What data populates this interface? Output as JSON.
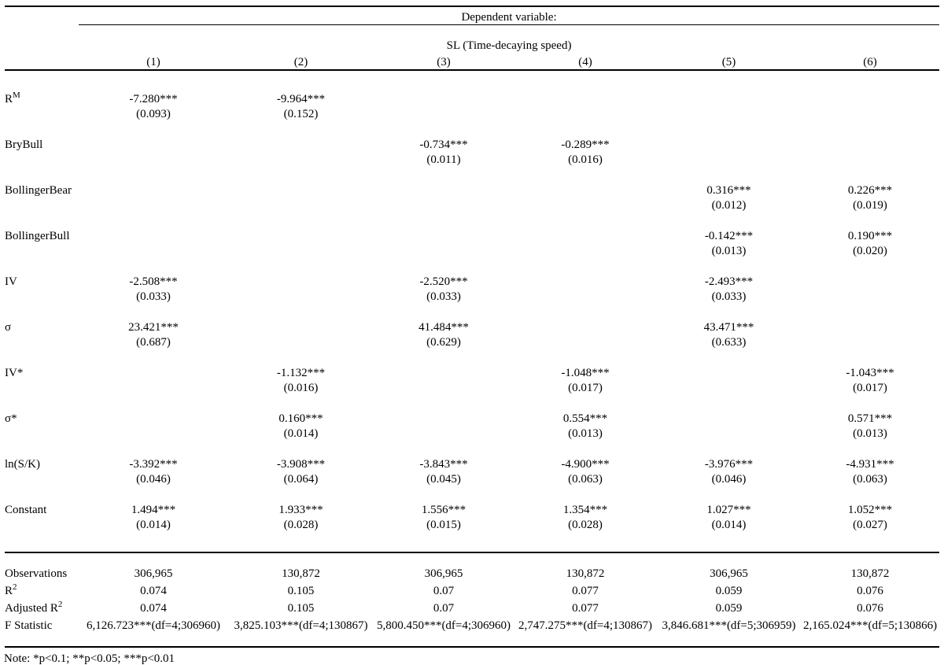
{
  "header": {
    "dependent_variable_label": "Dependent variable:",
    "dependent_variable_name": "SL (Time-decaying speed)",
    "column_headers": [
      "(1)",
      "(2)",
      "(3)",
      "(4)",
      "(5)",
      "(6)"
    ]
  },
  "coefficients": [
    {
      "label": "R",
      "sup": "M",
      "estimates": [
        "-7.280***",
        "-9.964***",
        "",
        "",
        "",
        ""
      ],
      "std_errors": [
        "(0.093)",
        "(0.152)",
        "",
        "",
        "",
        ""
      ]
    },
    {
      "label": "BryBull",
      "sup": "",
      "estimates": [
        "",
        "",
        "-0.734***",
        "-0.289***",
        "",
        ""
      ],
      "std_errors": [
        "",
        "",
        "(0.011)",
        "(0.016)",
        "",
        ""
      ]
    },
    {
      "label": "BollingerBear",
      "sup": "",
      "estimates": [
        "",
        "",
        "",
        "",
        "0.316***",
        "0.226***"
      ],
      "std_errors": [
        "",
        "",
        "",
        "",
        "(0.012)",
        "(0.019)"
      ]
    },
    {
      "label": "BollingerBull",
      "sup": "",
      "estimates": [
        "",
        "",
        "",
        "",
        "-0.142***",
        "0.190***"
      ],
      "std_errors": [
        "",
        "",
        "",
        "",
        "(0.013)",
        "(0.020)"
      ]
    },
    {
      "label": "IV",
      "sup": "",
      "estimates": [
        "-2.508***",
        "",
        "-2.520***",
        "",
        "-2.493***",
        ""
      ],
      "std_errors": [
        "(0.033)",
        "",
        "(0.033)",
        "",
        "(0.033)",
        ""
      ]
    },
    {
      "label": "σ",
      "sup": "",
      "estimates": [
        "23.421***",
        "",
        "41.484***",
        "",
        "43.471***",
        ""
      ],
      "std_errors": [
        "(0.687)",
        "",
        "(0.629)",
        "",
        "(0.633)",
        ""
      ]
    },
    {
      "label": "IV*",
      "sup": "",
      "estimates": [
        "",
        "-1.132***",
        "",
        "-1.048***",
        "",
        "-1.043***"
      ],
      "std_errors": [
        "",
        "(0.016)",
        "",
        "(0.017)",
        "",
        "(0.017)"
      ]
    },
    {
      "label": "σ*",
      "sup": "",
      "estimates": [
        "",
        "0.160***",
        "",
        "0.554***",
        "",
        "0.571***"
      ],
      "std_errors": [
        "",
        "(0.014)",
        "",
        "(0.013)",
        "",
        "(0.013)"
      ]
    },
    {
      "label": "ln(S/K)",
      "sup": "",
      "estimates": [
        "-3.392***",
        "-3.908***",
        "-3.843***",
        "-4.900***",
        "-3.976***",
        "-4.931***"
      ],
      "std_errors": [
        "(0.046)",
        "(0.064)",
        "(0.045)",
        "(0.063)",
        "(0.046)",
        "(0.063)"
      ]
    },
    {
      "label": "Constant",
      "sup": "",
      "estimates": [
        "1.494***",
        "1.933***",
        "1.556***",
        "1.354***",
        "1.027***",
        "1.052***"
      ],
      "std_errors": [
        "(0.014)",
        "(0.028)",
        "(0.015)",
        "(0.028)",
        "(0.014)",
        "(0.027)"
      ]
    }
  ],
  "statistics": [
    {
      "label": "Observations",
      "sup": "",
      "values": [
        "306,965",
        "130,872",
        "306,965",
        "130,872",
        "306,965",
        "130,872"
      ]
    },
    {
      "label": "R",
      "sup": "2",
      "values": [
        "0.074",
        "0.105",
        "0.07",
        "0.077",
        "0.059",
        "0.076"
      ]
    },
    {
      "label": "Adjusted R",
      "sup": "2",
      "values": [
        "0.074",
        "0.105",
        "0.07",
        "0.077",
        "0.059",
        "0.076"
      ]
    },
    {
      "label": "F Statistic",
      "sup": "",
      "values": [
        "6,126.723***(df=4;306960)",
        "3,825.103***(df=4;130867)",
        "5,800.450***(df=4;306960)",
        "2,747.275***(df=4;130867)",
        "3,846.681***(df=5;306959)",
        "2,165.024***(df=5;130866)"
      ]
    }
  ],
  "note": "Note: *p<0.1; **p<0.05; ***p<0.01"
}
